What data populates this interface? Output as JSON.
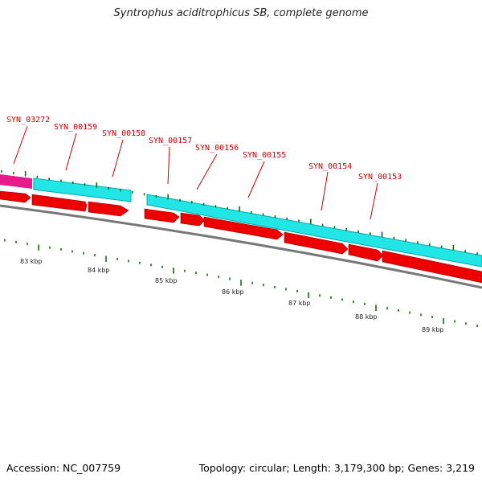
{
  "title": "Syntrophus aciditrophicus SB, complete genome",
  "footer": {
    "accession": "Accession: NC_007759",
    "summary": "Topology: circular; Length: 3,179,300 bp; Genes: 3,219"
  },
  "colors": {
    "label": "#cc0000",
    "cds": "#ee0000",
    "gene": "#00ffff",
    "pseudo": "#e8198b",
    "tick": "#006400",
    "backbone": "#777777"
  },
  "genes": [
    {
      "name": "SYN_03272"
    },
    {
      "name": "SYN_00159"
    },
    {
      "name": "SYN_00158"
    },
    {
      "name": "SYN_00157"
    },
    {
      "name": "SYN_00156"
    },
    {
      "name": "SYN_00155"
    },
    {
      "name": "SYN_00154"
    },
    {
      "name": "SYN_00153"
    }
  ],
  "kbp_labels": [
    "83 kbp",
    "84 kbp",
    "85 kbp",
    "86 kbp",
    "87 kbp",
    "88 kbp",
    "89 kbp"
  ]
}
